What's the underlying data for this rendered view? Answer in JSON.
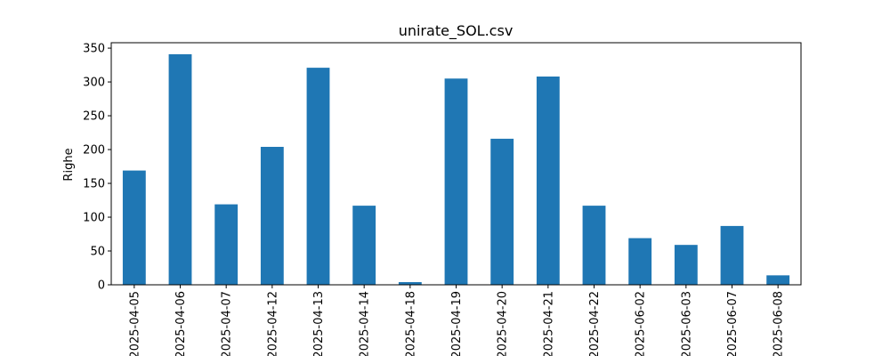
{
  "chart_data": {
    "type": "bar",
    "title": "unirate_SOL.csv",
    "xlabel": "",
    "ylabel": "Righe",
    "ylim": [
      0,
      358
    ],
    "yticks": [
      0,
      50,
      100,
      150,
      200,
      250,
      300,
      350
    ],
    "grid": false,
    "categories": [
      "2025-04-05",
      "2025-04-06",
      "2025-04-07",
      "2025-04-12",
      "2025-04-13",
      "2025-04-14",
      "2025-04-18",
      "2025-04-19",
      "2025-04-20",
      "2025-04-21",
      "2025-04-22",
      "2025-06-02",
      "2025-06-03",
      "2025-06-07",
      "2025-06-08"
    ],
    "values": [
      169,
      341,
      119,
      204,
      321,
      117,
      4,
      305,
      216,
      308,
      117,
      69,
      59,
      87,
      14
    ],
    "bar_color": "#1f77b4"
  }
}
